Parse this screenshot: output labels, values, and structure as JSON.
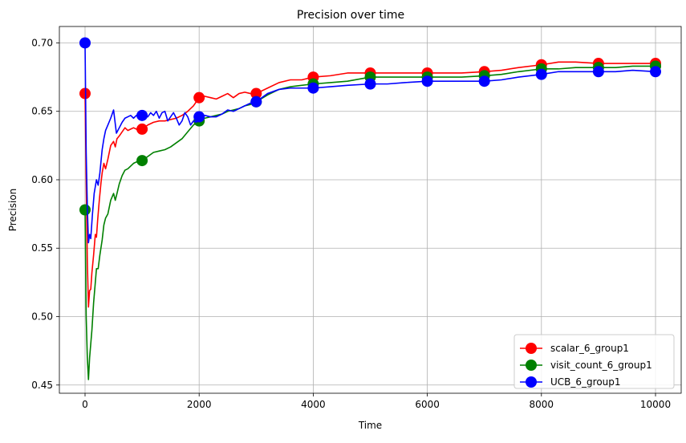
{
  "chart_data": {
    "type": "line",
    "title": "Precision over time",
    "xlabel": "Time",
    "ylabel": "Precision",
    "xlim": [
      -450,
      10450
    ],
    "ylim": [
      0.444,
      0.712
    ],
    "xticks": [
      0,
      2000,
      4000,
      6000,
      8000,
      10000
    ],
    "xtick_labels": [
      "0",
      "2000",
      "4000",
      "6000",
      "8000",
      "10000"
    ],
    "yticks": [
      0.45,
      0.5,
      0.55,
      0.6,
      0.65,
      0.7
    ],
    "ytick_labels": [
      "0.45",
      "0.50",
      "0.55",
      "0.60",
      "0.65",
      "0.70"
    ],
    "grid": true,
    "legend_position": "bottom-right",
    "series": [
      {
        "name": "scalar_6_group1",
        "color": "#ff0000",
        "marker": "circle",
        "x": [
          0,
          20,
          40,
          60,
          80,
          100,
          120,
          150,
          180,
          200,
          220,
          250,
          280,
          300,
          330,
          360,
          400,
          450,
          500,
          530,
          560,
          600,
          650,
          700,
          750,
          800,
          850,
          900,
          950,
          1000,
          1100,
          1200,
          1300,
          1400,
          1500,
          1600,
          1700,
          1800,
          1900,
          2000,
          2100,
          2200,
          2300,
          2400,
          2500,
          2600,
          2700,
          2800,
          2900,
          3000,
          3200,
          3400,
          3600,
          3800,
          4000,
          4300,
          4600,
          5000,
          5300,
          5600,
          6000,
          6300,
          6600,
          7000,
          7300,
          7600,
          8000,
          8300,
          8600,
          9000,
          9300,
          9600,
          10000
        ],
        "values": [
          0.663,
          0.6,
          0.54,
          0.507,
          0.519,
          0.52,
          0.532,
          0.545,
          0.56,
          0.558,
          0.57,
          0.585,
          0.598,
          0.605,
          0.612,
          0.608,
          0.615,
          0.625,
          0.628,
          0.624,
          0.63,
          0.632,
          0.635,
          0.638,
          0.636,
          0.637,
          0.638,
          0.637,
          0.636,
          0.637,
          0.64,
          0.642,
          0.643,
          0.643,
          0.644,
          0.645,
          0.647,
          0.65,
          0.654,
          0.66,
          0.661,
          0.66,
          0.659,
          0.661,
          0.663,
          0.66,
          0.663,
          0.664,
          0.663,
          0.663,
          0.667,
          0.671,
          0.673,
          0.673,
          0.675,
          0.676,
          0.678,
          0.678,
          0.678,
          0.678,
          0.678,
          0.678,
          0.678,
          0.679,
          0.68,
          0.682,
          0.684,
          0.686,
          0.686,
          0.685,
          0.685,
          0.685,
          0.685
        ],
        "marker_x": [
          0,
          1000,
          2000,
          3000,
          4000,
          5000,
          6000,
          7000,
          8000,
          9000,
          10000
        ],
        "marker_values": [
          0.663,
          0.637,
          0.66,
          0.663,
          0.675,
          0.678,
          0.678,
          0.679,
          0.684,
          0.685,
          0.685
        ]
      },
      {
        "name": "visit_count_6_group1",
        "color": "#008000",
        "marker": "circle",
        "x": [
          0,
          20,
          40,
          60,
          80,
          100,
          120,
          150,
          180,
          200,
          230,
          260,
          300,
          330,
          360,
          400,
          450,
          500,
          530,
          560,
          600,
          650,
          700,
          750,
          800,
          850,
          900,
          950,
          1000,
          1100,
          1200,
          1300,
          1400,
          1500,
          1600,
          1700,
          1800,
          1900,
          2000,
          2100,
          2200,
          2300,
          2400,
          2500,
          2600,
          2700,
          2800,
          2900,
          3000,
          3200,
          3400,
          3600,
          3800,
          4000,
          4300,
          4600,
          5000,
          5300,
          5600,
          6000,
          6300,
          6600,
          7000,
          7300,
          7600,
          8000,
          8300,
          8600,
          9000,
          9300,
          9600,
          10000
        ],
        "values": [
          0.578,
          0.5,
          0.47,
          0.454,
          0.47,
          0.48,
          0.49,
          0.51,
          0.525,
          0.535,
          0.535,
          0.545,
          0.556,
          0.567,
          0.572,
          0.575,
          0.585,
          0.59,
          0.585,
          0.59,
          0.597,
          0.603,
          0.607,
          0.608,
          0.61,
          0.612,
          0.613,
          0.613,
          0.614,
          0.617,
          0.62,
          0.621,
          0.622,
          0.624,
          0.627,
          0.63,
          0.635,
          0.64,
          0.643,
          0.645,
          0.646,
          0.647,
          0.648,
          0.65,
          0.651,
          0.652,
          0.654,
          0.655,
          0.657,
          0.662,
          0.666,
          0.668,
          0.669,
          0.67,
          0.671,
          0.672,
          0.675,
          0.675,
          0.675,
          0.675,
          0.675,
          0.675,
          0.676,
          0.677,
          0.679,
          0.681,
          0.681,
          0.682,
          0.682,
          0.682,
          0.683,
          0.683
        ],
        "marker_x": [
          0,
          1000,
          2000,
          3000,
          4000,
          5000,
          6000,
          7000,
          8000,
          9000,
          10000
        ],
        "marker_values": [
          0.578,
          0.614,
          0.643,
          0.657,
          0.67,
          0.675,
          0.675,
          0.676,
          0.681,
          0.682,
          0.683
        ]
      },
      {
        "name": "UCB_6_group1",
        "color": "#0000ff",
        "marker": "circle",
        "x": [
          0,
          20,
          40,
          60,
          80,
          100,
          130,
          160,
          200,
          230,
          260,
          300,
          330,
          360,
          400,
          450,
          500,
          550,
          600,
          650,
          700,
          750,
          800,
          850,
          900,
          950,
          1000,
          1050,
          1100,
          1150,
          1200,
          1250,
          1300,
          1350,
          1400,
          1450,
          1500,
          1550,
          1600,
          1650,
          1700,
          1750,
          1800,
          1850,
          1900,
          1950,
          2000,
          2100,
          2200,
          2300,
          2400,
          2500,
          2600,
          2700,
          2800,
          2900,
          3000,
          3200,
          3400,
          3600,
          3800,
          4000,
          4300,
          4600,
          5000,
          5300,
          5600,
          6000,
          6300,
          6600,
          7000,
          7300,
          7600,
          8000,
          8300,
          8600,
          9000,
          9300,
          9600,
          10000
        ],
        "values": [
          0.7,
          0.62,
          0.58,
          0.554,
          0.56,
          0.557,
          0.575,
          0.59,
          0.6,
          0.596,
          0.605,
          0.622,
          0.63,
          0.636,
          0.64,
          0.645,
          0.651,
          0.634,
          0.638,
          0.642,
          0.645,
          0.646,
          0.647,
          0.645,
          0.647,
          0.646,
          0.647,
          0.648,
          0.646,
          0.649,
          0.647,
          0.65,
          0.645,
          0.649,
          0.65,
          0.643,
          0.646,
          0.649,
          0.645,
          0.64,
          0.643,
          0.649,
          0.646,
          0.64,
          0.643,
          0.642,
          0.646,
          0.647,
          0.646,
          0.646,
          0.648,
          0.651,
          0.65,
          0.652,
          0.654,
          0.656,
          0.657,
          0.663,
          0.666,
          0.667,
          0.667,
          0.667,
          0.668,
          0.669,
          0.67,
          0.67,
          0.671,
          0.672,
          0.672,
          0.672,
          0.672,
          0.673,
          0.675,
          0.677,
          0.679,
          0.679,
          0.679,
          0.679,
          0.68,
          0.679
        ],
        "marker_x": [
          0,
          1000,
          2000,
          3000,
          4000,
          5000,
          6000,
          7000,
          8000,
          9000,
          10000
        ],
        "marker_values": [
          0.7,
          0.647,
          0.646,
          0.657,
          0.667,
          0.67,
          0.672,
          0.672,
          0.677,
          0.679,
          0.679
        ]
      }
    ]
  }
}
